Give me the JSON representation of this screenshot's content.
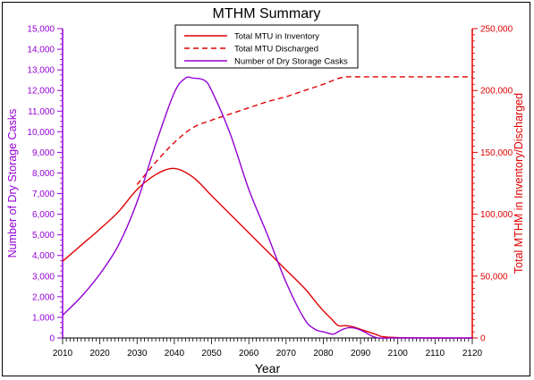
{
  "chart_data": {
    "type": "line",
    "title": "MTHM Summary",
    "xlabel": "Year",
    "ylabel_left": "Number of Dry Storage Casks",
    "ylabel_right": "Total MTHM in Inventory/Discharged",
    "xlim": [
      2010,
      2120
    ],
    "ylim_left": [
      0,
      15000
    ],
    "ylim_right": [
      0,
      250000
    ],
    "x_ticks": [
      "2010",
      "2020",
      "2030",
      "2040",
      "2050",
      "2060",
      "2070",
      "2080",
      "2090",
      "2100",
      "2110",
      "2120"
    ],
    "y_left_ticks": [
      "0",
      "1,000",
      "2,000",
      "3,000",
      "4,000",
      "5,000",
      "6,000",
      "7,000",
      "8,000",
      "9,000",
      "10,000",
      "11,000",
      "12,000",
      "13,000",
      "14,000",
      "15,000"
    ],
    "y_right_ticks": [
      "0",
      "50,000",
      "100,000",
      "150,000",
      "200,000",
      "250,000"
    ],
    "grid": false,
    "legend_position": "top-center",
    "series": [
      {
        "name": "Total MTU in Inventory",
        "axis": "right",
        "color": "#e00000",
        "style": "solid",
        "x": [
          2010,
          2015,
          2020,
          2025,
          2030,
          2035,
          2040,
          2045,
          2050,
          2055,
          2060,
          2065,
          2070,
          2075,
          2078,
          2080,
          2082,
          2084,
          2086,
          2088,
          2090,
          2092,
          2094,
          2096,
          2100,
          2110,
          2120
        ],
        "y": [
          62000,
          75000,
          88000,
          102000,
          120000,
          132000,
          137000,
          130000,
          115000,
          100000,
          85000,
          70000,
          55000,
          40000,
          29000,
          22000,
          16000,
          10000,
          10000,
          9000,
          7000,
          5000,
          3000,
          1000,
          300,
          0,
          0
        ]
      },
      {
        "name": "Total MTU Discharged",
        "axis": "right",
        "color": "#e00000",
        "style": "dashed",
        "x": [
          2030,
          2035,
          2040,
          2045,
          2050,
          2055,
          2060,
          2065,
          2070,
          2075,
          2080,
          2085,
          2090,
          2100,
          2110,
          2120
        ],
        "y": [
          124000,
          142000,
          158000,
          170000,
          176000,
          181000,
          186000,
          191000,
          195000,
          200000,
          205000,
          210500,
          211000,
          211000,
          211000,
          211000
        ]
      },
      {
        "name": "Number of Dry Storage Casks",
        "axis": "left",
        "color": "#9400d3",
        "style": "solid",
        "x": [
          2010,
          2015,
          2020,
          2025,
          2030,
          2035,
          2040,
          2043,
          2045,
          2048,
          2050,
          2055,
          2060,
          2065,
          2070,
          2075,
          2078,
          2080,
          2082,
          2083,
          2085,
          2087,
          2089,
          2091,
          2093,
          2095,
          2100,
          2110,
          2120
        ],
        "y": [
          1100,
          2000,
          3100,
          4500,
          6600,
          9400,
          11900,
          12600,
          12600,
          12500,
          12000,
          9900,
          7200,
          5000,
          2700,
          900,
          400,
          300,
          200,
          200,
          400,
          500,
          450,
          300,
          100,
          0,
          0,
          0,
          0
        ]
      }
    ]
  }
}
